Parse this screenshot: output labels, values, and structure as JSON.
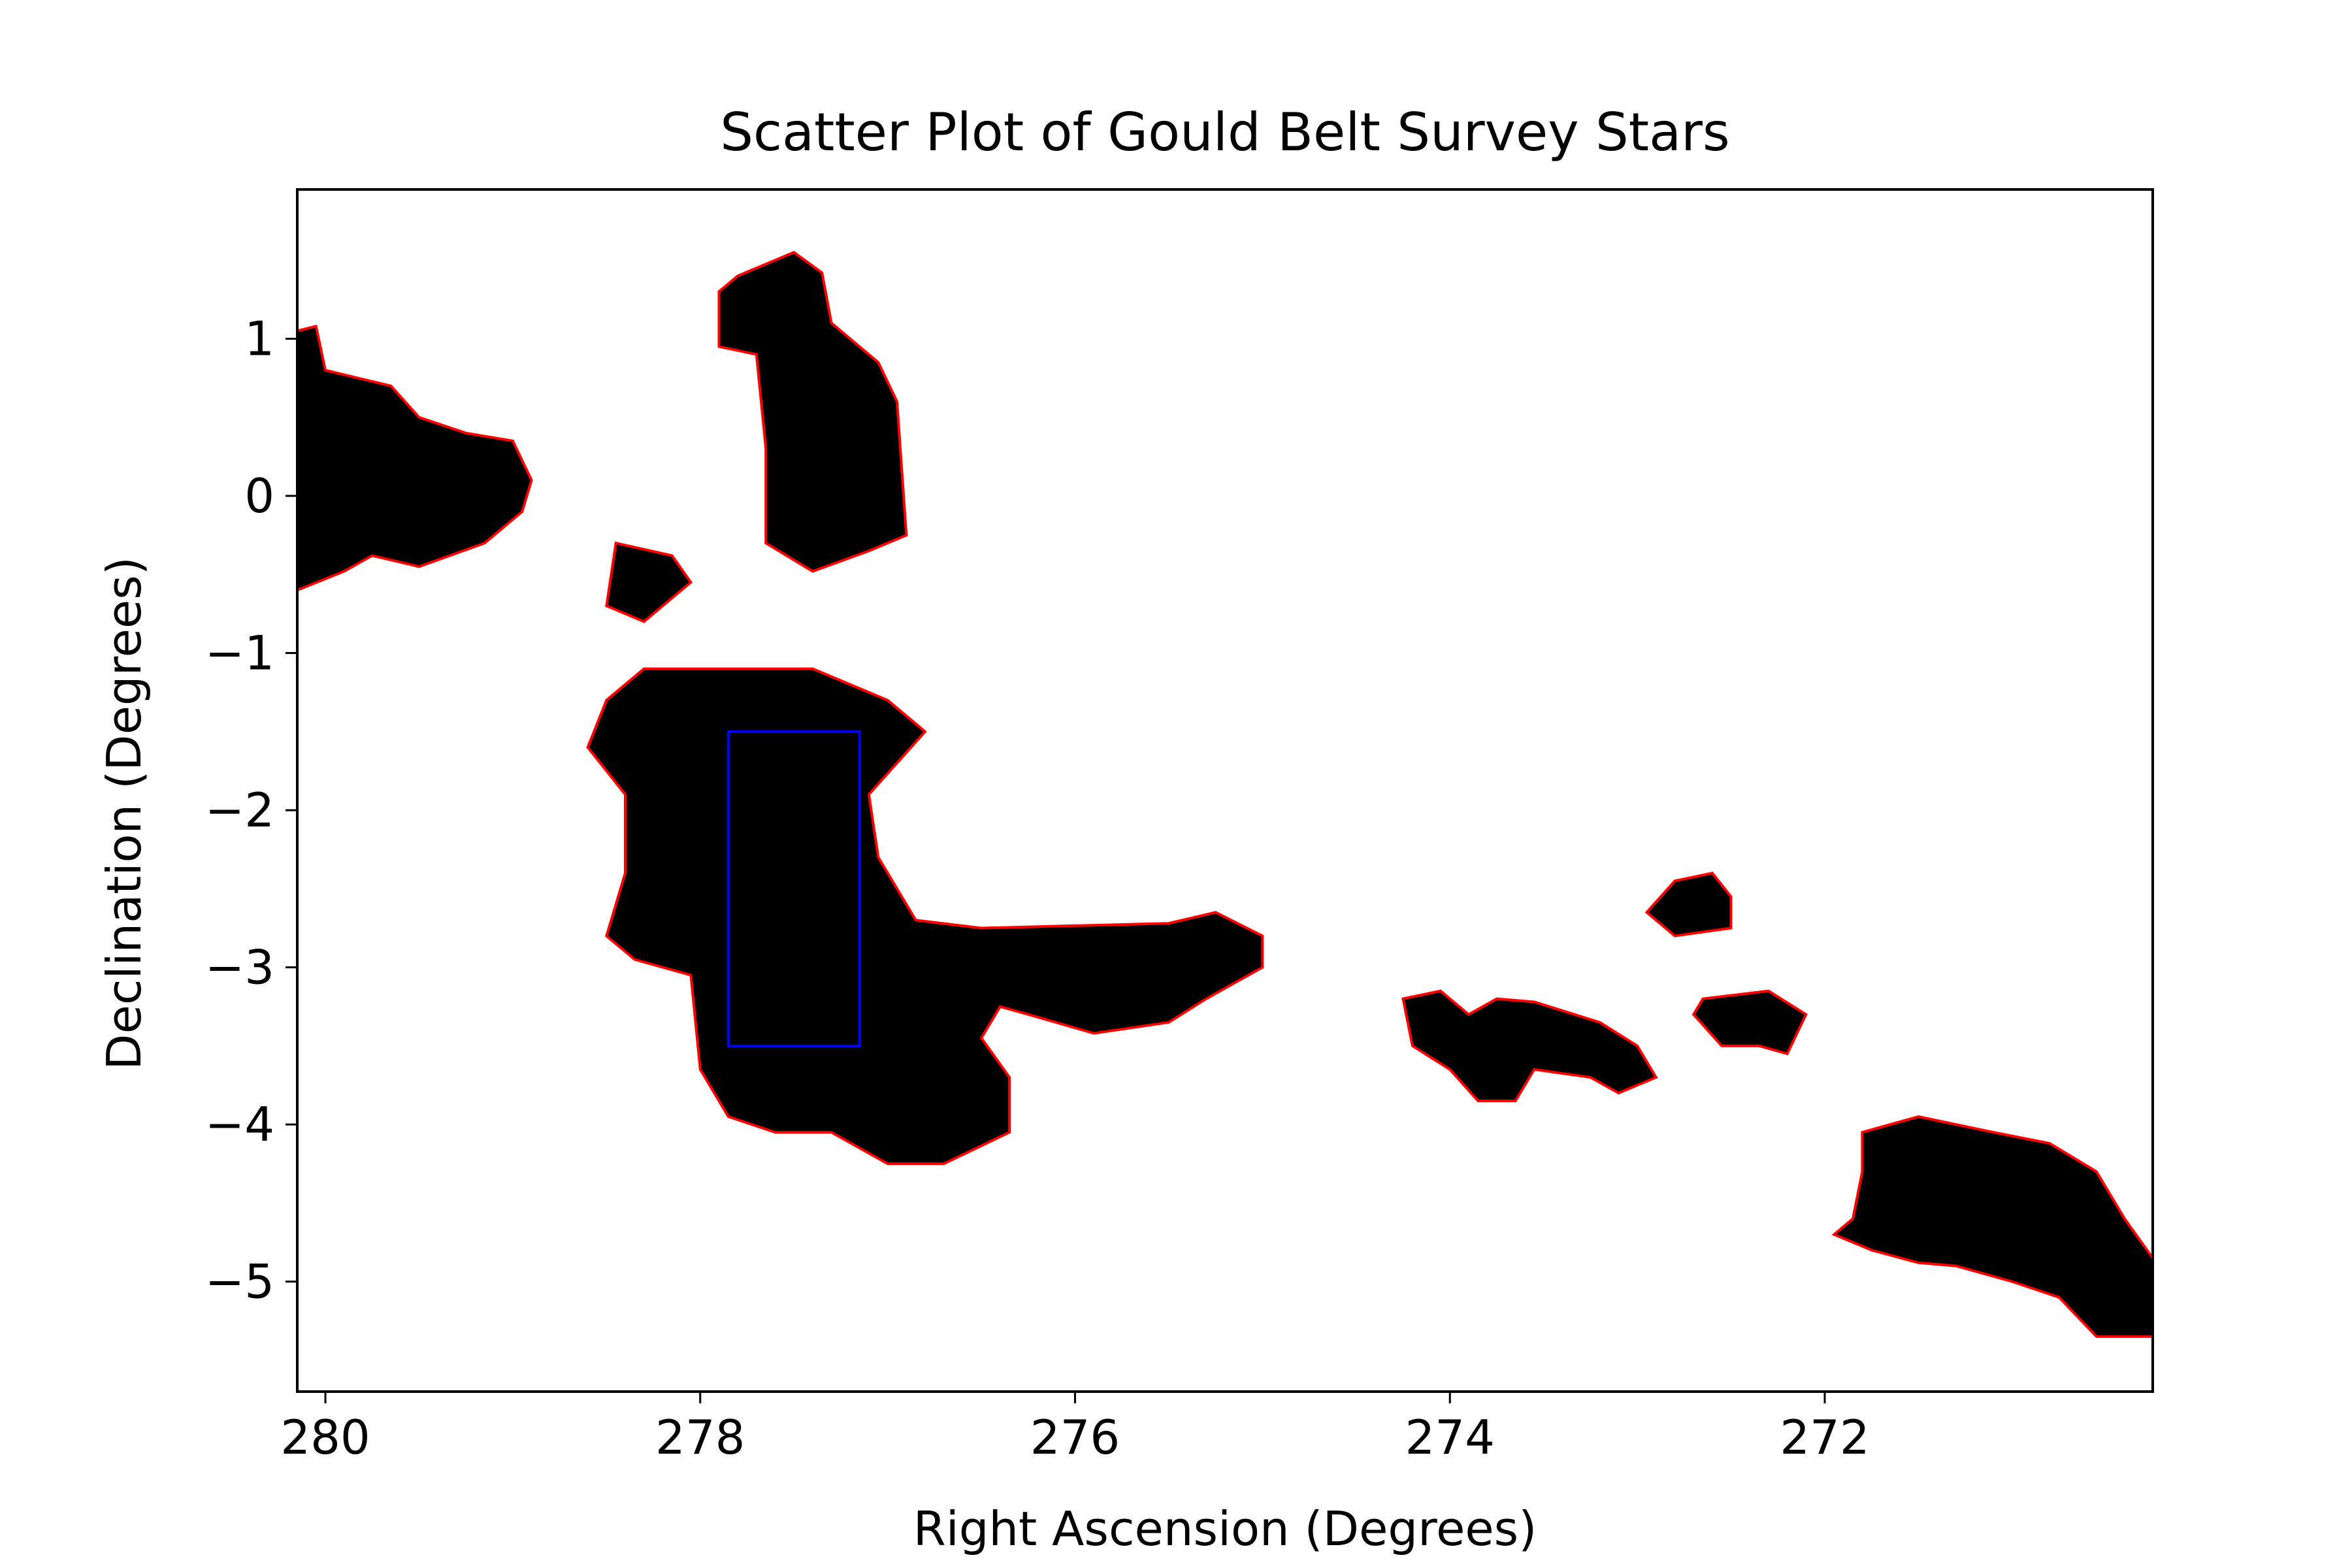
{
  "chart_data": {
    "type": "scatter",
    "title": "Scatter Plot of Gould Belt Survey Stars",
    "xlabel": "Right Ascension (Degrees)",
    "ylabel": "Declination (Degrees)",
    "xlim": [
      280.15,
      270.25
    ],
    "ylim": [
      -5.7,
      1.95
    ],
    "x_inverted": true,
    "xticks": [
      280,
      278,
      276,
      274,
      272
    ],
    "yticks": [
      1,
      0,
      -1,
      -2,
      -3,
      -4,
      -5
    ],
    "xtick_labels": [
      "280",
      "278",
      "276",
      "274",
      "272"
    ],
    "ytick_labels": [
      "1",
      "0",
      "−1",
      "−2",
      "−3",
      "−4",
      "−5"
    ],
    "grid": false,
    "colors": {
      "points": "#000000",
      "contour": "#ff0000",
      "selection_box": "#0000ff"
    },
    "clusters": [
      {
        "id": "serpens-northwest",
        "polygon": [
          [
            280.15,
            1.05
          ],
          [
            280.05,
            1.08
          ],
          [
            280.0,
            0.8
          ],
          [
            279.65,
            0.7
          ],
          [
            279.5,
            0.5
          ],
          [
            279.25,
            0.4
          ],
          [
            279.0,
            0.35
          ],
          [
            278.9,
            0.1
          ],
          [
            278.95,
            -0.1
          ],
          [
            279.15,
            -0.3
          ],
          [
            279.5,
            -0.45
          ],
          [
            279.75,
            -0.38
          ],
          [
            279.9,
            -0.48
          ],
          [
            280.15,
            -0.6
          ]
        ]
      },
      {
        "id": "small-square",
        "polygon": [
          [
            278.45,
            -0.3
          ],
          [
            278.15,
            -0.38
          ],
          [
            278.05,
            -0.55
          ],
          [
            278.3,
            -0.8
          ],
          [
            278.5,
            -0.7
          ]
        ]
      },
      {
        "id": "northern-strip",
        "polygon": [
          [
            277.8,
            1.4
          ],
          [
            277.5,
            1.55
          ],
          [
            277.35,
            1.42
          ],
          [
            277.3,
            1.1
          ],
          [
            277.05,
            0.85
          ],
          [
            276.95,
            0.6
          ],
          [
            276.9,
            -0.25
          ],
          [
            277.1,
            -0.35
          ],
          [
            277.4,
            -0.48
          ],
          [
            277.65,
            -0.3
          ],
          [
            277.65,
            0.3
          ],
          [
            277.7,
            0.9
          ],
          [
            277.9,
            0.95
          ],
          [
            277.9,
            1.3
          ]
        ]
      },
      {
        "id": "serpens-south-main",
        "polygon": [
          [
            278.5,
            -1.3
          ],
          [
            278.3,
            -1.1
          ],
          [
            277.4,
            -1.1
          ],
          [
            277.0,
            -1.3
          ],
          [
            276.8,
            -1.5
          ],
          [
            277.1,
            -1.9
          ],
          [
            277.05,
            -2.3
          ],
          [
            276.85,
            -2.7
          ],
          [
            276.5,
            -2.75
          ],
          [
            275.5,
            -2.72
          ],
          [
            275.25,
            -2.65
          ],
          [
            275.0,
            -2.8
          ],
          [
            275.0,
            -3.0
          ],
          [
            275.3,
            -3.2
          ],
          [
            275.5,
            -3.35
          ],
          [
            275.9,
            -3.42
          ],
          [
            276.25,
            -3.3
          ],
          [
            276.4,
            -3.25
          ],
          [
            276.5,
            -3.45
          ],
          [
            276.35,
            -3.7
          ],
          [
            276.35,
            -4.05
          ],
          [
            276.7,
            -4.25
          ],
          [
            277.0,
            -4.25
          ],
          [
            277.3,
            -4.05
          ],
          [
            277.6,
            -4.05
          ],
          [
            277.85,
            -3.95
          ],
          [
            278.0,
            -3.65
          ],
          [
            278.05,
            -3.05
          ],
          [
            278.35,
            -2.95
          ],
          [
            278.5,
            -2.8
          ],
          [
            278.4,
            -2.4
          ],
          [
            278.4,
            -1.9
          ],
          [
            278.6,
            -1.6
          ]
        ]
      },
      {
        "id": "east-tail",
        "polygon": [
          [
            274.25,
            -3.2
          ],
          [
            274.05,
            -3.15
          ],
          [
            273.9,
            -3.3
          ],
          [
            273.75,
            -3.2
          ],
          [
            273.55,
            -3.22
          ],
          [
            273.2,
            -3.35
          ],
          [
            273.0,
            -3.5
          ],
          [
            272.9,
            -3.7
          ],
          [
            273.1,
            -3.8
          ],
          [
            273.25,
            -3.7
          ],
          [
            273.55,
            -3.65
          ],
          [
            273.65,
            -3.85
          ],
          [
            273.85,
            -3.85
          ],
          [
            274.0,
            -3.65
          ],
          [
            274.2,
            -3.5
          ]
        ]
      },
      {
        "id": "blob-a",
        "polygon": [
          [
            272.8,
            -2.45
          ],
          [
            272.6,
            -2.4
          ],
          [
            272.5,
            -2.55
          ],
          [
            272.5,
            -2.75
          ],
          [
            272.8,
            -2.8
          ],
          [
            272.95,
            -2.65
          ]
        ]
      },
      {
        "id": "blob-b",
        "polygon": [
          [
            272.65,
            -3.2
          ],
          [
            272.3,
            -3.15
          ],
          [
            272.1,
            -3.3
          ],
          [
            272.2,
            -3.55
          ],
          [
            272.35,
            -3.5
          ],
          [
            272.55,
            -3.5
          ],
          [
            272.7,
            -3.3
          ]
        ]
      },
      {
        "id": "southeast",
        "polygon": [
          [
            271.8,
            -4.05
          ],
          [
            271.5,
            -3.95
          ],
          [
            271.1,
            -4.05
          ],
          [
            270.8,
            -4.12
          ],
          [
            270.55,
            -4.3
          ],
          [
            270.4,
            -4.6
          ],
          [
            270.25,
            -4.85
          ],
          [
            270.25,
            -5.35
          ],
          [
            270.55,
            -5.35
          ],
          [
            270.75,
            -5.1
          ],
          [
            271.0,
            -5.0
          ],
          [
            271.3,
            -4.9
          ],
          [
            271.5,
            -4.88
          ],
          [
            271.75,
            -4.8
          ],
          [
            271.95,
            -4.7
          ],
          [
            271.85,
            -4.6
          ],
          [
            271.8,
            -4.3
          ]
        ]
      }
    ],
    "selection_box": {
      "x": [
        277.85,
        277.15
      ],
      "y": [
        -3.5,
        -1.5
      ]
    }
  }
}
